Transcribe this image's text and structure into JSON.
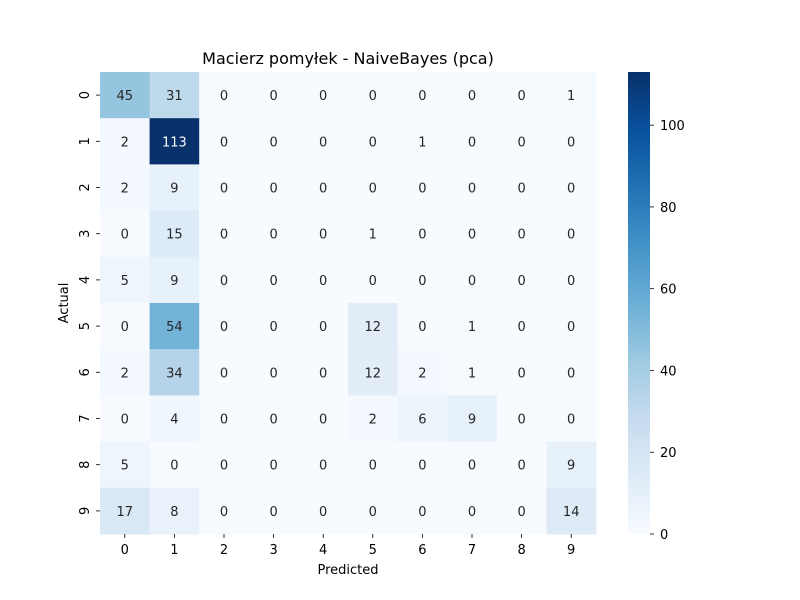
{
  "chart_data": {
    "type": "heatmap",
    "title": "Macierz pomyłek - NaiveBayes (pca)",
    "xlabel": "Predicted",
    "ylabel": "Actual",
    "x_categories": [
      "0",
      "1",
      "2",
      "3",
      "4",
      "5",
      "6",
      "7",
      "8",
      "9"
    ],
    "y_categories": [
      "0",
      "1",
      "2",
      "3",
      "4",
      "5",
      "6",
      "7",
      "8",
      "9"
    ],
    "values": [
      [
        45,
        31,
        0,
        0,
        0,
        0,
        0,
        0,
        0,
        1
      ],
      [
        2,
        113,
        0,
        0,
        0,
        0,
        1,
        0,
        0,
        0
      ],
      [
        2,
        9,
        0,
        0,
        0,
        0,
        0,
        0,
        0,
        0
      ],
      [
        0,
        15,
        0,
        0,
        0,
        1,
        0,
        0,
        0,
        0
      ],
      [
        5,
        9,
        0,
        0,
        0,
        0,
        0,
        0,
        0,
        0
      ],
      [
        0,
        54,
        0,
        0,
        0,
        12,
        0,
        1,
        0,
        0
      ],
      [
        2,
        34,
        0,
        0,
        0,
        12,
        2,
        1,
        0,
        0
      ],
      [
        0,
        4,
        0,
        0,
        0,
        2,
        6,
        9,
        0,
        0
      ],
      [
        5,
        0,
        0,
        0,
        0,
        0,
        0,
        0,
        0,
        9
      ],
      [
        17,
        8,
        0,
        0,
        0,
        0,
        0,
        0,
        0,
        14
      ]
    ],
    "colorbar": {
      "colormap": "Blues",
      "vmin": 0,
      "vmax": 113,
      "ticks": [
        0,
        20,
        40,
        60,
        80,
        100
      ]
    },
    "annotations": true
  }
}
